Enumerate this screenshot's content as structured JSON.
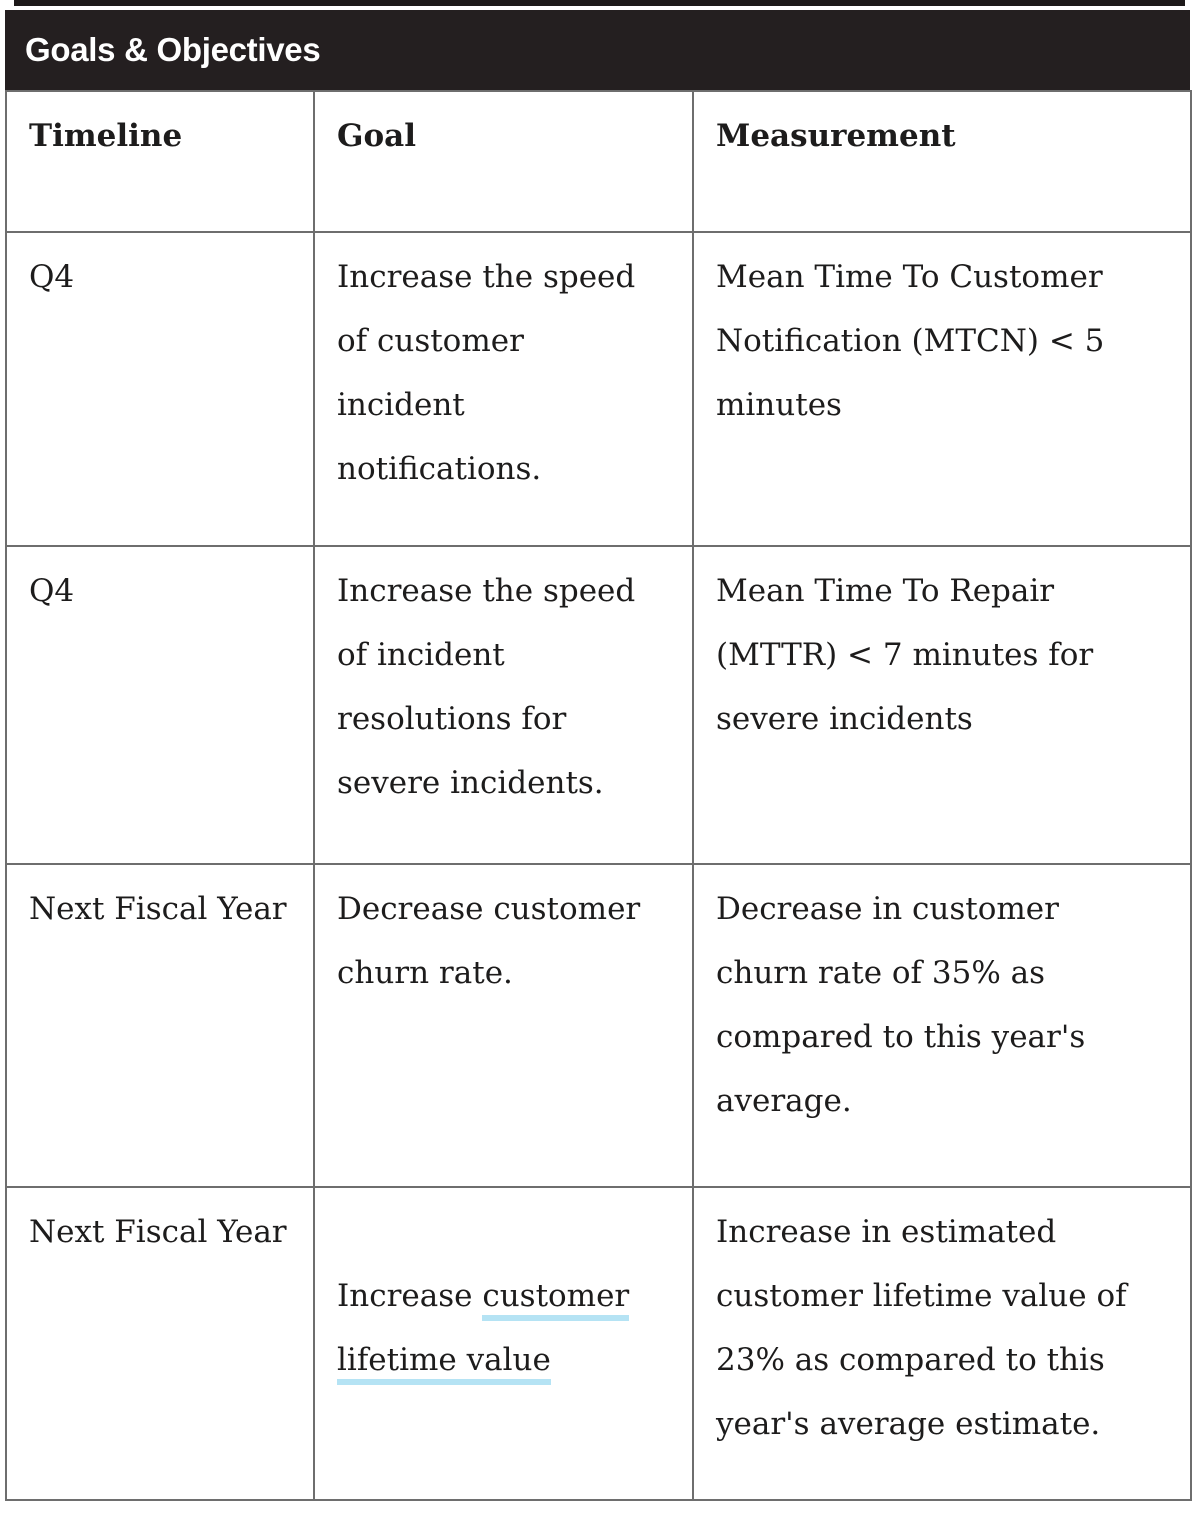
{
  "section": {
    "title": "Goals & Objectives"
  },
  "table": {
    "columns": [
      "Timeline",
      "Goal",
      "Measurement"
    ],
    "rows": [
      {
        "timeline": "Q4",
        "goal": "Increase the speed\nof customer\nincident\nnotifications.",
        "measurement": "Mean Time To Customer\nNotification (MTCN) < 5\nminutes"
      },
      {
        "timeline": "Q4",
        "goal": "Increase the speed\nof incident\nresolutions for\nsevere incidents.",
        "measurement": "Mean Time To Repair\n(MTTR) < 7 minutes for\nsevere incidents"
      },
      {
        "timeline": "Next Fiscal Year",
        "goal": "Decrease customer\nchurn rate.",
        "measurement": "Decrease in customer\nchurn rate of 35% as\ncompared to this year's\naverage."
      },
      {
        "timeline": "Next Fiscal Year",
        "goal_prefix": "Increase ",
        "goal_link": "customer\nlifetime value",
        "measurement": "Increase in estimated\ncustomer lifetime value of\n23% as compared to this\nyear's average estimate."
      }
    ]
  },
  "colors": {
    "band_background": "#241f20",
    "band_text": "#ffffff",
    "table_border": "#6e6e6e",
    "body_text": "#1d1c1c",
    "link_underline": "#b5e3f4"
  }
}
